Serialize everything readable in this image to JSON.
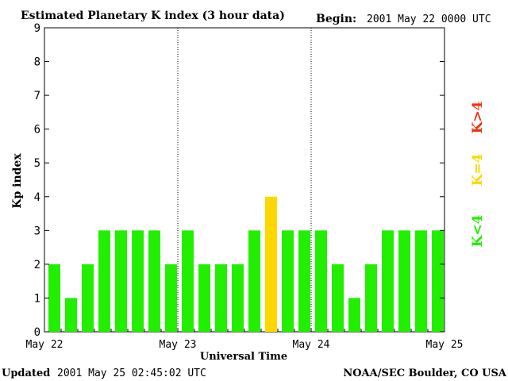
{
  "header": {
    "title": "Estimated Planetary K index (3 hour data)",
    "begin_label": "Begin:",
    "begin_value": "2001 May 22 0000 UTC"
  },
  "footer": {
    "updated_label": "Updated",
    "updated_value": "2001 May 25 02:45:02 UTC",
    "source": "NOAA/SEC Boulder, CO USA"
  },
  "legend": {
    "low": "K<4",
    "mid": "K=4",
    "high": "K>4"
  },
  "colors": {
    "low": "#22ee00",
    "mid": "#ffd700",
    "high": "#ee3311"
  },
  "chart_data": {
    "type": "bar",
    "title": "Estimated Planetary K index (3 hour data)",
    "xlabel": "Universal Time",
    "ylabel": "Kp index",
    "ylim": [
      0,
      9
    ],
    "yticks": [
      "0",
      "1",
      "2",
      "3",
      "4",
      "5",
      "6",
      "7",
      "8",
      "9"
    ],
    "xticks": [
      "May 22",
      "May 23",
      "May 24",
      "May 25"
    ],
    "day_dividers": true,
    "series": [
      {
        "values": [
          2,
          1,
          2,
          3,
          3,
          3,
          3,
          2,
          3,
          2,
          2,
          2,
          3,
          4,
          3,
          3,
          3,
          2,
          1,
          2,
          3,
          3,
          3,
          3
        ]
      }
    ]
  }
}
